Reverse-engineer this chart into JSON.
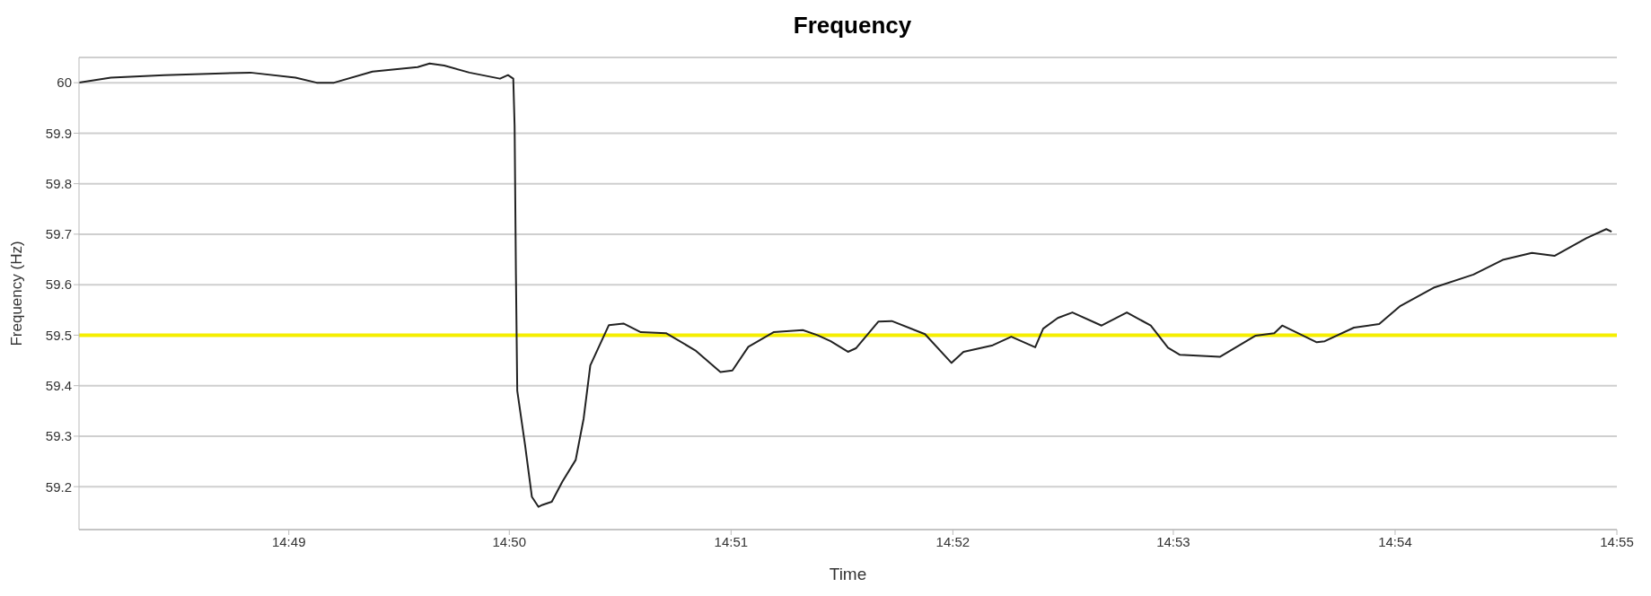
{
  "chart_data": {
    "type": "line",
    "title": "Frequency",
    "xlabel": "Time",
    "ylabel": "Frequency (Hz)",
    "x": [
      14.8009,
      14.8033,
      14.8073,
      14.8138,
      14.8172,
      14.8188,
      14.8201,
      14.823,
      14.8264,
      14.8273,
      14.8284,
      14.8303,
      14.8326,
      14.8332,
      14.8336,
      14.8337,
      14.8338,
      14.8339,
      14.8345,
      14.835,
      14.8355,
      14.8358,
      14.8365,
      14.8373,
      14.8383,
      14.8389,
      14.8394,
      14.8408,
      14.8419,
      14.8432,
      14.8451,
      14.8473,
      14.8492,
      14.8501,
      14.8513,
      14.8532,
      14.8554,
      14.8565,
      14.8575,
      14.8588,
      14.8594,
      14.8611,
      14.8621,
      14.8646,
      14.8666,
      14.8675,
      14.8697,
      14.8711,
      14.8729,
      14.8735,
      14.8746,
      14.8757,
      14.8779,
      14.8798,
      14.8816,
      14.8829,
      14.8838,
      14.8868,
      14.8895,
      14.8909,
      14.8915,
      14.8941,
      14.8947,
      14.8969,
      14.8988,
      14.9004,
      14.9029,
      14.9059,
      14.9081,
      14.9103,
      14.912,
      14.9144,
      14.9159,
      14.9163
    ],
    "series": [
      {
        "color": "#222222",
        "values": [
          60.0,
          60.01,
          60.015,
          60.02,
          60.01,
          60.0,
          60.0,
          60.022,
          60.031,
          60.038,
          60.034,
          60.02,
          60.008,
          60.015,
          60.008,
          59.915,
          59.62,
          59.39,
          59.28,
          59.18,
          59.16,
          59.164,
          59.17,
          59.21,
          59.253,
          59.335,
          59.44,
          59.52,
          59.523,
          59.506,
          59.504,
          59.47,
          59.427,
          59.43,
          59.477,
          59.506,
          59.51,
          59.5,
          59.488,
          59.467,
          59.474,
          59.527,
          59.528,
          59.502,
          59.445,
          59.467,
          59.48,
          59.497,
          59.476,
          59.513,
          59.534,
          59.545,
          59.519,
          59.545,
          59.519,
          59.475,
          59.461,
          59.457,
          59.499,
          59.504,
          59.519,
          59.486,
          59.488,
          59.515,
          59.522,
          59.558,
          59.594,
          59.62,
          59.649,
          59.663,
          59.657,
          59.692,
          59.71,
          59.705
        ]
      }
    ],
    "xlim": [
      14.8009,
      14.9167
    ],
    "xticks": [
      {
        "value": 14.8167,
        "label": "14:49"
      },
      {
        "value": 14.8333,
        "label": "14:50"
      },
      {
        "value": 14.85,
        "label": "14:51"
      },
      {
        "value": 14.8667,
        "label": "14:52"
      },
      {
        "value": 14.8833,
        "label": "14:53"
      },
      {
        "value": 14.9,
        "label": "14:54"
      },
      {
        "value": 14.9167,
        "label": "14:55"
      }
    ],
    "ylim": [
      59.115,
      60.05
    ],
    "yticks": [
      59.2,
      59.3,
      59.4,
      59.5,
      59.6,
      59.7,
      59.8,
      59.9,
      60
    ],
    "ref_lines": [
      {
        "axis": "y",
        "value": 59.5,
        "color": "#f5ee00"
      }
    ],
    "grid": "y",
    "marker": "none",
    "line_style": "solid"
  }
}
